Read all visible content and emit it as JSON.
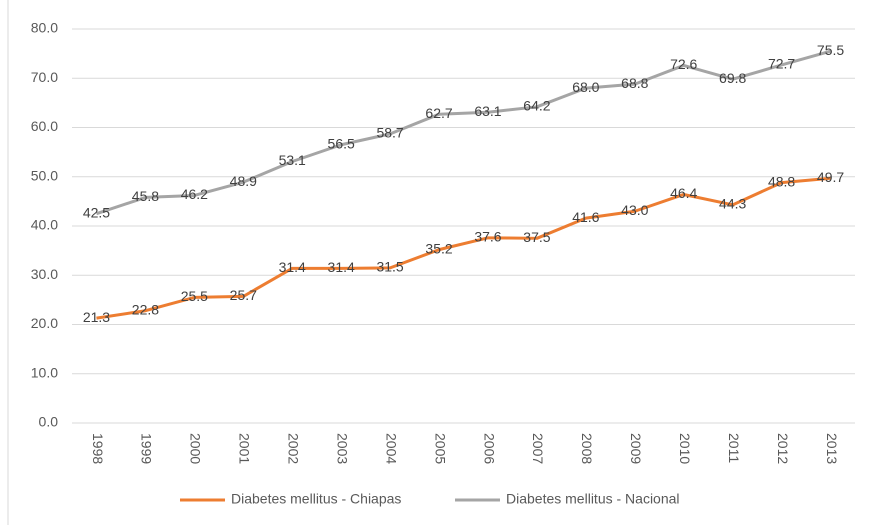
{
  "chart_data": {
    "type": "line",
    "categories": [
      "1998",
      "1999",
      "2000",
      "2001",
      "2002",
      "2003",
      "2004",
      "2005",
      "2006",
      "2007",
      "2008",
      "2009",
      "2010",
      "2011",
      "2012",
      "2013"
    ],
    "series": [
      {
        "name": "Diabetes mellitus - Chiapas",
        "color": "#ed7d31",
        "values": [
          21.3,
          22.8,
          25.5,
          25.7,
          31.4,
          31.4,
          31.5,
          35.2,
          37.6,
          37.5,
          41.6,
          43.0,
          46.4,
          44.3,
          48.8,
          49.7
        ],
        "value_labels": [
          "21.3",
          "22.8",
          "25.5",
          "25.7",
          "31.4",
          "31.4",
          "31.5",
          "35.2",
          "37.6",
          "37.5",
          "41.6",
          "43.0",
          "46.4",
          "44.3",
          "48.8",
          "49.7"
        ]
      },
      {
        "name": "Diabetes mellitus - Nacional",
        "color": "#a5a5a5",
        "values": [
          42.5,
          45.8,
          46.2,
          48.9,
          53.1,
          56.5,
          58.7,
          62.7,
          63.1,
          64.2,
          68.0,
          68.8,
          72.6,
          69.8,
          72.7,
          75.5
        ],
        "value_labels": [
          "42.5",
          "45.8",
          "46.2",
          "48.9",
          "53.1",
          "56.5",
          "58.7",
          "62.7",
          "63.1",
          "64.2",
          "68.0",
          "68.8",
          "72.6",
          "69.8",
          "72.7",
          "75.5"
        ]
      }
    ],
    "ylim": [
      0,
      80
    ],
    "yticks": [
      {
        "value": 0,
        "label": "0.0"
      },
      {
        "value": 10,
        "label": "10.0"
      },
      {
        "value": 20,
        "label": "20.0"
      },
      {
        "value": 30,
        "label": "30.0"
      },
      {
        "value": 40,
        "label": "40.0"
      },
      {
        "value": 50,
        "label": "50.0"
      },
      {
        "value": 60,
        "label": "60.0"
      },
      {
        "value": 70,
        "label": "70.0"
      },
      {
        "value": 80,
        "label": "80.0"
      }
    ],
    "grid": true,
    "legend": "bottom"
  }
}
